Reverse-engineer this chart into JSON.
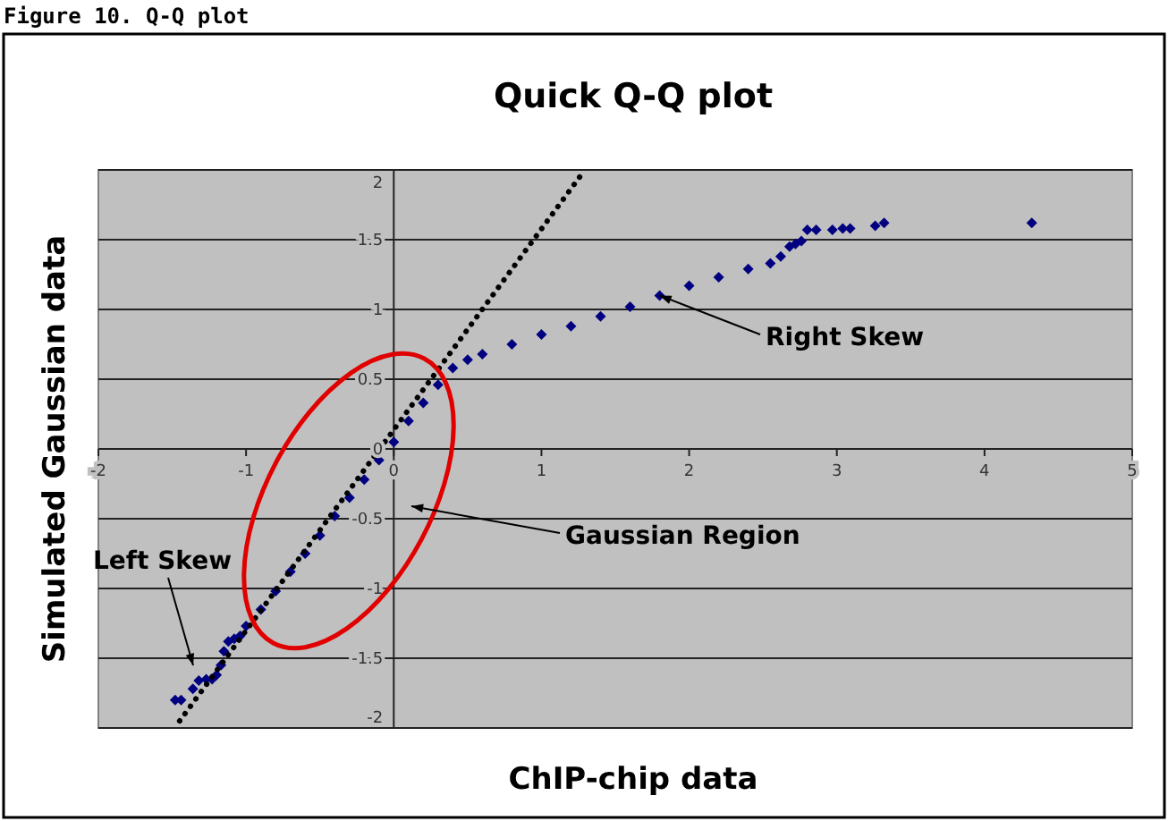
{
  "chart_data": {
    "type": "scatter",
    "title": "Quick Q-Q plot",
    "xlabel": "ChIP-chip data",
    "ylabel": "Simulated Gaussian data",
    "annotations": [
      "Figure 10.  Q-Q plot",
      {
        "text": "Right Skew",
        "x": 1.8,
        "y": 1.1
      },
      "Gaussian Region",
      "Left Skew"
    ],
    "xlim": [
      -2,
      5
    ],
    "xticks": [
      -2,
      -1,
      0,
      1,
      2,
      3,
      4,
      5
    ],
    "ylim": [
      -2,
      2
    ],
    "yticks": [
      -2,
      -1.5,
      -1,
      -0.5,
      0,
      0.5,
      1,
      1.5,
      2
    ],
    "grid": "y",
    "series": [
      {
        "type": "scatter",
        "color": "#000080",
        "marker": "diamond",
        "x": [
          -1.48,
          -1.44,
          -1.36,
          -1.32,
          -1.27,
          -1.23,
          -1.2,
          -1.17,
          -1.15,
          -1.12,
          -1.08,
          -1.04,
          -1.0,
          -0.9,
          -0.8,
          -0.7,
          -0.6,
          -0.5,
          -0.4,
          -0.3,
          -0.2,
          -0.1,
          0,
          0.1,
          0.2,
          0.3,
          0.4,
          0.5,
          0.6,
          0.8,
          1.0,
          1.2,
          1.4,
          1.6,
          1.8,
          2.0,
          2.2,
          2.4,
          2.55,
          2.62,
          2.68,
          2.72,
          2.76,
          2.8,
          2.86,
          2.97,
          3.04,
          3.09,
          3.26,
          3.32,
          4.32
        ],
        "values": [
          -1.8,
          -1.8,
          -1.72,
          -1.66,
          -1.65,
          -1.65,
          -1.62,
          -1.55,
          -1.45,
          -1.38,
          -1.36,
          -1.34,
          -1.27,
          -1.15,
          -1.02,
          -0.88,
          -0.75,
          -0.62,
          -0.48,
          -0.35,
          -0.22,
          -0.08,
          0.05,
          0.2,
          0.33,
          0.46,
          0.58,
          0.64,
          0.68,
          0.75,
          0.82,
          0.88,
          0.95,
          1.02,
          1.1,
          1.17,
          1.23,
          1.29,
          1.33,
          1.38,
          1.45,
          1.47,
          1.49,
          1.57,
          1.57,
          1.57,
          1.58,
          1.58,
          1.6,
          1.62,
          1.62
        ]
      },
      {
        "type": "line",
        "color": "#000000",
        "line_style": "dotted",
        "marker": "none",
        "x": [
          -1.45,
          1.28
        ],
        "values": [
          -1.95,
          1.98
        ]
      }
    ]
  }
}
